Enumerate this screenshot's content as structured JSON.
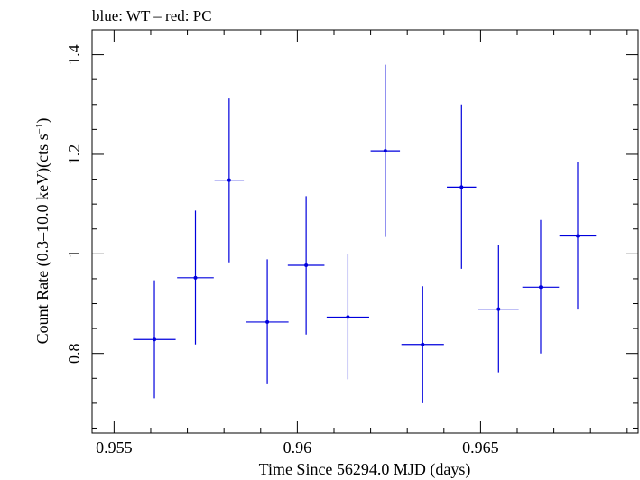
{
  "chart_data": {
    "type": "scatter",
    "title": "blue: WT – red: PC",
    "xlabel": "Time Since 56294.0 MJD (days)",
    "ylabel_main": "Count Rate (0.3–10.0 keV)(cts s",
    "ylabel_sup": "−1",
    "ylabel_close": ")",
    "xlim": [
      0.9544,
      0.9693
    ],
    "ylim": [
      0.64,
      1.45
    ],
    "x_major_ticks": [
      0.955,
      0.96,
      0.965
    ],
    "x_tick_labels": [
      "0.955",
      "0.96",
      "0.965"
    ],
    "x_minor_step": 0.001,
    "y_major_ticks": [
      0.8,
      1.0,
      1.2,
      1.4
    ],
    "y_tick_labels": [
      "0.8",
      "1",
      "1.2",
      "1.4"
    ],
    "y_minor_step": 0.05,
    "grid": false,
    "series": [
      {
        "color": "#0000dd",
        "points": [
          {
            "x": 0.9561,
            "y": 0.828,
            "xerr": 0.00058,
            "ylo": 0.71,
            "yhi": 0.947
          },
          {
            "x": 0.95722,
            "y": 0.952,
            "xerr": 0.0005,
            "ylo": 0.818,
            "yhi": 1.087
          },
          {
            "x": 0.95814,
            "y": 1.148,
            "xerr": 0.0004,
            "ylo": 0.983,
            "yhi": 1.312
          },
          {
            "x": 0.95918,
            "y": 0.863,
            "xerr": 0.00058,
            "ylo": 0.738,
            "yhi": 0.989
          },
          {
            "x": 0.96024,
            "y": 0.977,
            "xerr": 0.0005,
            "ylo": 0.838,
            "yhi": 1.116
          },
          {
            "x": 0.96138,
            "y": 0.873,
            "xerr": 0.00058,
            "ylo": 0.748,
            "yhi": 1.0
          },
          {
            "x": 0.9624,
            "y": 1.207,
            "xerr": 0.0004,
            "ylo": 1.034,
            "yhi": 1.38
          },
          {
            "x": 0.96342,
            "y": 0.818,
            "xerr": 0.00058,
            "ylo": 0.7,
            "yhi": 0.935
          },
          {
            "x": 0.96448,
            "y": 1.134,
            "xerr": 0.0004,
            "ylo": 0.97,
            "yhi": 1.3
          },
          {
            "x": 0.96549,
            "y": 0.889,
            "xerr": 0.00055,
            "ylo": 0.762,
            "yhi": 1.017
          },
          {
            "x": 0.96664,
            "y": 0.933,
            "xerr": 0.0005,
            "ylo": 0.8,
            "yhi": 1.068
          },
          {
            "x": 0.96765,
            "y": 1.036,
            "xerr": 0.0005,
            "ylo": 0.888,
            "yhi": 1.185
          }
        ]
      }
    ]
  }
}
